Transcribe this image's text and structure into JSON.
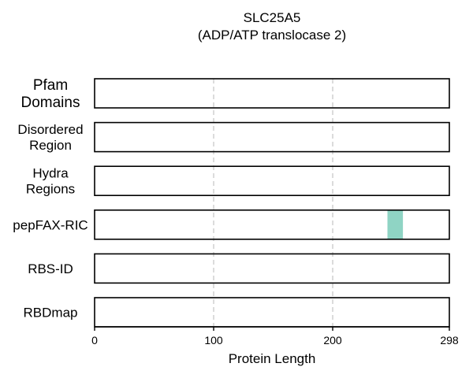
{
  "chart_data": {
    "type": "bar",
    "title": [
      "SLC25A5",
      "(ADP/ATP translocase 2)"
    ],
    "xlabel": "Protein Length",
    "xlim": [
      0,
      298
    ],
    "xticks": [
      0,
      100,
      200,
      298
    ],
    "grid": "vertical dashed at 100 and 200",
    "tracks": [
      {
        "label": [
          "Pfam",
          "Domains"
        ],
        "regions": []
      },
      {
        "label": [
          "Disordered",
          "Region"
        ],
        "regions": []
      },
      {
        "label": [
          "Hydra",
          "Regions"
        ],
        "regions": []
      },
      {
        "label": [
          "pepFAX-RIC"
        ],
        "regions": [
          {
            "start": 246,
            "end": 259,
            "color": "#8fd4c4"
          }
        ]
      },
      {
        "label": [
          "RBS-ID"
        ],
        "regions": []
      },
      {
        "label": [
          "RBDmap"
        ],
        "regions": []
      }
    ]
  }
}
